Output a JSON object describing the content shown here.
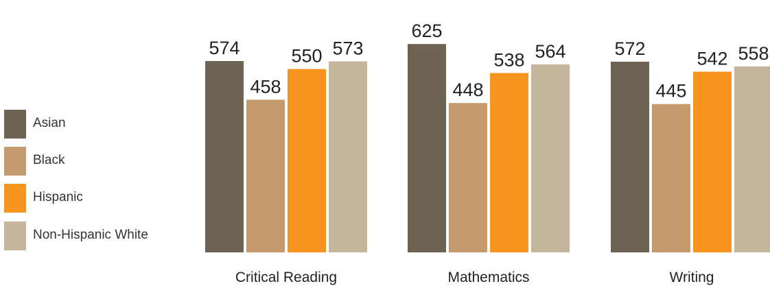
{
  "chart_data": {
    "type": "bar",
    "categories": [
      "Critical Reading",
      "Mathematics",
      "Writing"
    ],
    "series": [
      {
        "name": "Asian",
        "color": "#6e6353",
        "values": [
          574,
          625,
          572
        ]
      },
      {
        "name": "Black",
        "color": "#c49a6c",
        "values": [
          458,
          448,
          445
        ]
      },
      {
        "name": "Hispanic",
        "color": "#f7941d",
        "values": [
          550,
          538,
          542
        ]
      },
      {
        "name": "Non-Hispanic White",
        "color": "#c4b59b",
        "values": [
          573,
          564,
          558
        ]
      }
    ],
    "title": "",
    "xlabel": "",
    "ylabel": "",
    "grid": false,
    "legend": "left"
  }
}
